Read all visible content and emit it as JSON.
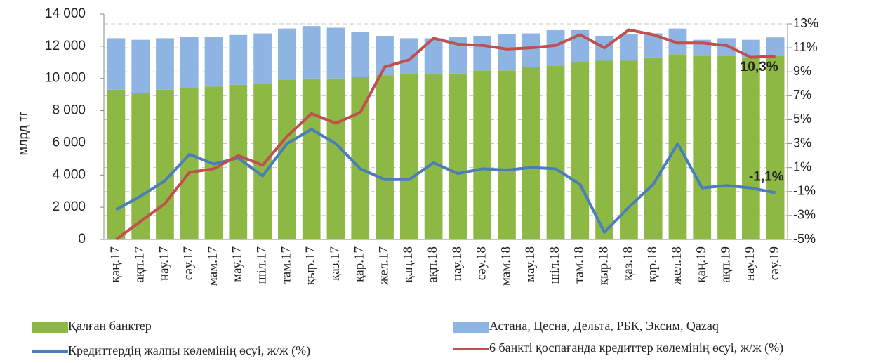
{
  "chart_data": {
    "type": "bar_line",
    "y_axis_label": "млрд тг",
    "categories": [
      "қаң.17",
      "ақп.17",
      "нау.17",
      "сәу.17",
      "мам.17",
      "мау.17",
      "шіл.17",
      "там.17",
      "қыр.17",
      "қаз.17",
      "қар.17",
      "жел.17",
      "қаң.18",
      "ақп.18",
      "нау.18",
      "сәу.18",
      "мам.18",
      "мау.18",
      "шіл.18",
      "там.18",
      "қыр.18",
      "қаз.18",
      "қар.18",
      "жел.18",
      "қаң.19",
      "ақп.19",
      "нау.19",
      "сәу.19"
    ],
    "ylim": [
      0,
      14000
    ],
    "yticks": [
      0,
      {
        "value": 2000,
        "label": "2 000"
      },
      {
        "value": 4000,
        "label": "4 000"
      },
      {
        "value": 6000,
        "label": "6 000"
      },
      {
        "value": 8000,
        "label": "8 000"
      },
      {
        "value": 10000,
        "label": "10 000"
      },
      {
        "value": 12000,
        "label": "12 000"
      },
      {
        "value": 14000,
        "label": "14 000"
      }
    ],
    "y2lim": [
      -5,
      13
    ],
    "y2ticks": [
      {
        "value": -5,
        "label": "-5%"
      },
      {
        "value": -3,
        "label": "-3%"
      },
      {
        "value": -1,
        "label": "-1%"
      },
      {
        "value": 1,
        "label": "1%"
      },
      {
        "value": 3,
        "label": "3%"
      },
      {
        "value": 5,
        "label": "5%"
      },
      {
        "value": 7,
        "label": "7%"
      },
      {
        "value": 9,
        "label": "9%"
      },
      {
        "value": 11,
        "label": "11%"
      },
      {
        "value": 13,
        "label": "13%"
      }
    ],
    "grid": true,
    "series": [
      {
        "name": "Қалған банктер",
        "kind": "bar",
        "color": "#8db843",
        "values": [
          9300,
          9100,
          9300,
          9400,
          9500,
          9600,
          9700,
          9900,
          10000,
          10000,
          10100,
          10200,
          10250,
          10250,
          10300,
          10500,
          10500,
          10700,
          10800,
          11000,
          11100,
          11100,
          11300,
          11500,
          11400,
          11400,
          11300,
          11400
        ]
      },
      {
        "name": "Астана, Цесна, Дельта, РБК, Эксим, Qazaq",
        "kind": "bar",
        "color": "#8db4e2",
        "values": [
          3200,
          3300,
          3200,
          3200,
          3100,
          3100,
          3100,
          3200,
          3250,
          3150,
          2800,
          2450,
          2250,
          2250,
          2300,
          2150,
          2250,
          2100,
          2200,
          2000,
          1550,
          1650,
          1500,
          1600,
          1000,
          1100,
          1100,
          1150
        ]
      },
      {
        "name": "Кредиттердің жалпы көлемінің өсуі, ж/ж (%)",
        "kind": "line",
        "axis": "y2",
        "color": "#4a7ebb",
        "values": [
          -2.5,
          -1.4,
          -0.1,
          2.1,
          1.3,
          1.8,
          0.3,
          3.0,
          4.2,
          3.0,
          0.9,
          0,
          0,
          1.4,
          0.5,
          0.9,
          0.8,
          1.0,
          0.9,
          -0.4,
          -4.4,
          -2.3,
          -0.4,
          3.0,
          -0.7,
          -0.5,
          -0.7,
          -1.1
        ],
        "value_labels": [
          null,
          null,
          null,
          null,
          null,
          null,
          null,
          null,
          null,
          null,
          null,
          null,
          null,
          null,
          null,
          null,
          null,
          null,
          null,
          null,
          null,
          null,
          null,
          null,
          null,
          null,
          null,
          "-1,1%"
        ]
      },
      {
        "name": "6 банкті қоспағанда кредиттер көлемінің өсуі, ж/ж (%)",
        "kind": "line",
        "axis": "y2",
        "color": "#c0504d",
        "values": [
          -5,
          -3.5,
          -2,
          0.6,
          0.9,
          2.0,
          1.2,
          3.6,
          5.5,
          4.7,
          5.6,
          9.4,
          10,
          11.8,
          11.3,
          11.2,
          10.9,
          11.0,
          11.2,
          12.1,
          11.0,
          12.5,
          12.1,
          11.4,
          11.4,
          11.2,
          10.2,
          10.3
        ],
        "value_labels": [
          null,
          null,
          null,
          null,
          null,
          null,
          null,
          null,
          null,
          null,
          null,
          null,
          null,
          null,
          null,
          null,
          null,
          null,
          null,
          null,
          null,
          null,
          null,
          null,
          null,
          null,
          null,
          "10,3%"
        ]
      }
    ]
  }
}
